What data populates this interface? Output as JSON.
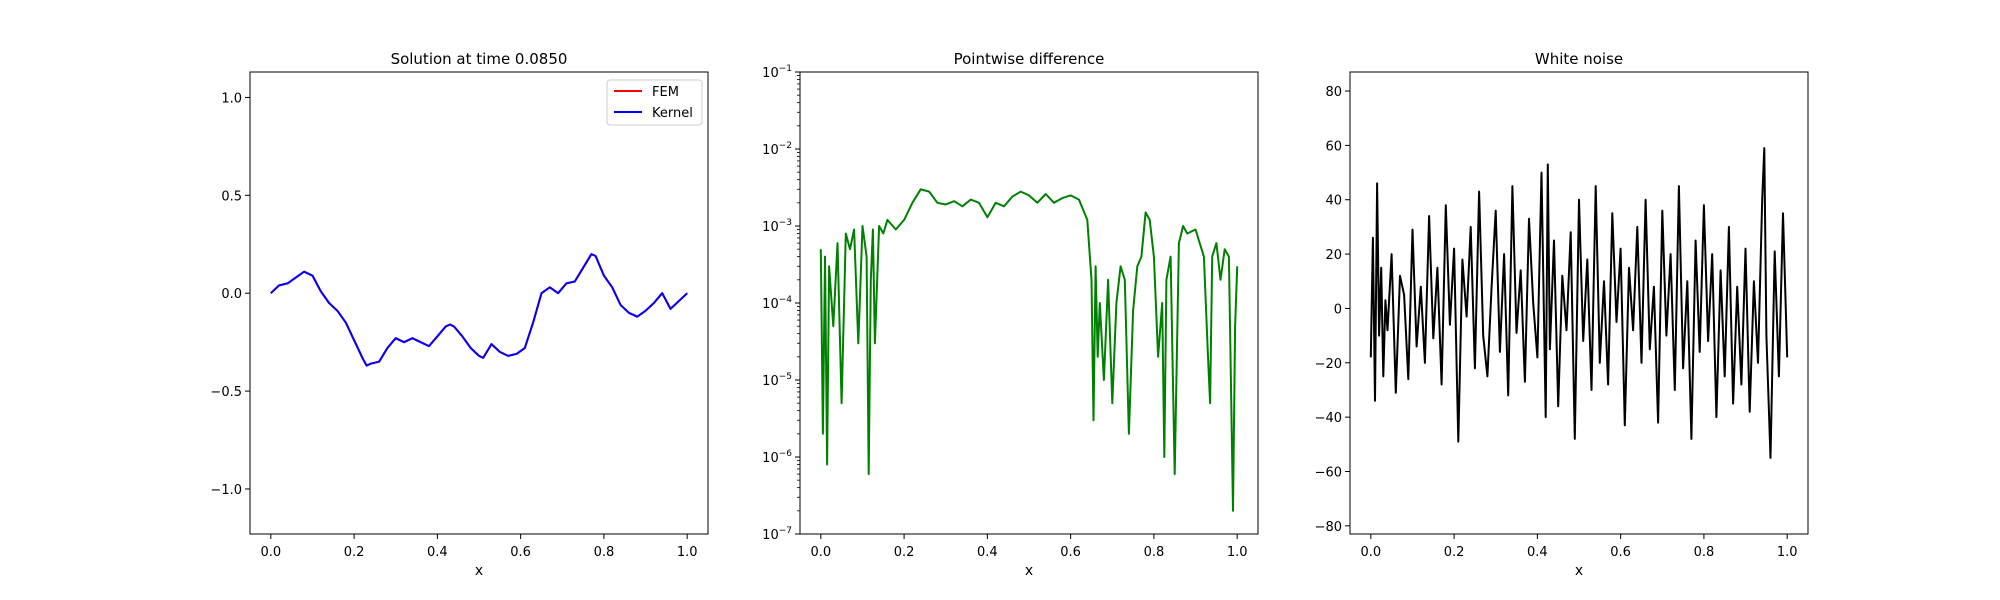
{
  "chart_data": [
    {
      "type": "line",
      "title": "Solution at time 0.0850",
      "xlabel": "x",
      "ylabel": "",
      "xlim": [
        -0.05,
        1.05
      ],
      "ylim": [
        -1.23,
        1.13
      ],
      "xticks": [
        0.0,
        0.2,
        0.4,
        0.6,
        0.8,
        1.0
      ],
      "xtick_labels": [
        "0.0",
        "0.2",
        "0.4",
        "0.6",
        "0.8",
        "1.0"
      ],
      "yticks": [
        -1.0,
        -0.5,
        0.0,
        0.5,
        1.0
      ],
      "ytick_labels": [
        "−1.0",
        "−0.5",
        "0.0",
        "0.5",
        "1.0"
      ],
      "grid": false,
      "legend_position": "top-right",
      "series": [
        {
          "name": "FEM",
          "color": "#ff0000",
          "x": [
            0.0,
            0.02,
            0.04,
            0.06,
            0.08,
            0.1,
            0.12,
            0.14,
            0.16,
            0.18,
            0.2,
            0.22,
            0.23,
            0.24,
            0.26,
            0.28,
            0.3,
            0.32,
            0.34,
            0.36,
            0.38,
            0.4,
            0.42,
            0.43,
            0.44,
            0.46,
            0.48,
            0.5,
            0.51,
            0.53,
            0.55,
            0.57,
            0.59,
            0.61,
            0.63,
            0.65,
            0.67,
            0.69,
            0.71,
            0.73,
            0.75,
            0.77,
            0.78,
            0.8,
            0.82,
            0.84,
            0.86,
            0.88,
            0.9,
            0.92,
            0.94,
            0.96,
            0.98,
            1.0
          ],
          "y": [
            0.0,
            0.04,
            0.05,
            0.08,
            0.11,
            0.09,
            0.01,
            -0.05,
            -0.09,
            -0.15,
            -0.24,
            -0.33,
            -0.37,
            -0.36,
            -0.35,
            -0.28,
            -0.23,
            -0.25,
            -0.23,
            -0.25,
            -0.27,
            -0.22,
            -0.17,
            -0.16,
            -0.17,
            -0.22,
            -0.28,
            -0.32,
            -0.33,
            -0.26,
            -0.3,
            -0.32,
            -0.31,
            -0.28,
            -0.15,
            0.0,
            0.03,
            0.0,
            0.05,
            0.06,
            0.13,
            0.2,
            0.19,
            0.09,
            0.03,
            -0.06,
            -0.1,
            -0.12,
            -0.09,
            -0.05,
            0.0,
            -0.08,
            -0.04,
            0.0
          ]
        },
        {
          "name": "Kernel",
          "color": "#0000ff",
          "x": [
            0.0,
            0.02,
            0.04,
            0.06,
            0.08,
            0.1,
            0.12,
            0.14,
            0.16,
            0.18,
            0.2,
            0.22,
            0.23,
            0.24,
            0.26,
            0.28,
            0.3,
            0.32,
            0.34,
            0.36,
            0.38,
            0.4,
            0.42,
            0.43,
            0.44,
            0.46,
            0.48,
            0.5,
            0.51,
            0.53,
            0.55,
            0.57,
            0.59,
            0.61,
            0.63,
            0.65,
            0.67,
            0.69,
            0.71,
            0.73,
            0.75,
            0.77,
            0.78,
            0.8,
            0.82,
            0.84,
            0.86,
            0.88,
            0.9,
            0.92,
            0.94,
            0.96,
            0.98,
            1.0
          ],
          "y": [
            0.0,
            0.04,
            0.05,
            0.08,
            0.11,
            0.09,
            0.01,
            -0.05,
            -0.09,
            -0.15,
            -0.24,
            -0.33,
            -0.37,
            -0.36,
            -0.35,
            -0.28,
            -0.23,
            -0.25,
            -0.23,
            -0.25,
            -0.27,
            -0.22,
            -0.17,
            -0.16,
            -0.17,
            -0.22,
            -0.28,
            -0.32,
            -0.33,
            -0.26,
            -0.3,
            -0.32,
            -0.31,
            -0.28,
            -0.15,
            0.0,
            0.03,
            0.0,
            0.05,
            0.06,
            0.13,
            0.2,
            0.19,
            0.09,
            0.03,
            -0.06,
            -0.1,
            -0.12,
            -0.09,
            -0.05,
            0.0,
            -0.08,
            -0.04,
            0.0
          ]
        }
      ]
    },
    {
      "type": "line",
      "title": "Pointwise difference",
      "xlabel": "x",
      "ylabel": "",
      "yscale": "log",
      "xlim": [
        -0.05,
        1.05
      ],
      "ylim": [
        1e-07,
        0.1
      ],
      "xticks": [
        0.0,
        0.2,
        0.4,
        0.6,
        0.8,
        1.0
      ],
      "xtick_labels": [
        "0.0",
        "0.2",
        "0.4",
        "0.6",
        "0.8",
        "1.0"
      ],
      "yticks": [
        1e-07,
        1e-06,
        1e-05,
        0.0001,
        0.001,
        0.01,
        0.1
      ],
      "ytick_mantissa": [
        "10",
        "10",
        "10",
        "10",
        "10",
        "10",
        "10"
      ],
      "ytick_exponents": [
        "−7",
        "−6",
        "−5",
        "−4",
        "−3",
        "−2",
        "−1"
      ],
      "grid": false,
      "series": [
        {
          "color": "#008000",
          "x": [
            0.0,
            0.005,
            0.01,
            0.015,
            0.02,
            0.03,
            0.04,
            0.05,
            0.06,
            0.07,
            0.08,
            0.09,
            0.1,
            0.11,
            0.115,
            0.12,
            0.125,
            0.13,
            0.14,
            0.15,
            0.16,
            0.18,
            0.2,
            0.22,
            0.24,
            0.26,
            0.28,
            0.3,
            0.32,
            0.34,
            0.36,
            0.38,
            0.4,
            0.42,
            0.44,
            0.46,
            0.48,
            0.5,
            0.52,
            0.54,
            0.56,
            0.58,
            0.6,
            0.62,
            0.64,
            0.65,
            0.655,
            0.66,
            0.665,
            0.67,
            0.68,
            0.69,
            0.7,
            0.71,
            0.72,
            0.73,
            0.74,
            0.75,
            0.76,
            0.77,
            0.78,
            0.79,
            0.8,
            0.81,
            0.82,
            0.825,
            0.83,
            0.84,
            0.85,
            0.86,
            0.87,
            0.88,
            0.9,
            0.91,
            0.92,
            0.93,
            0.935,
            0.94,
            0.95,
            0.96,
            0.97,
            0.98,
            0.985,
            0.99,
            0.995,
            1.0
          ],
          "y": [
            0.0005,
            2e-06,
            0.0004,
            8e-07,
            0.0003,
            5e-05,
            0.0006,
            5e-06,
            0.0008,
            0.0005,
            0.0009,
            3e-05,
            0.001,
            0.0004,
            6e-07,
            0.0002,
            0.0009,
            3e-05,
            0.001,
            0.0008,
            0.0012,
            0.0009,
            0.0012,
            0.002,
            0.003,
            0.0028,
            0.002,
            0.0019,
            0.0021,
            0.0018,
            0.0022,
            0.002,
            0.0013,
            0.002,
            0.0018,
            0.0024,
            0.0028,
            0.0025,
            0.002,
            0.0026,
            0.002,
            0.0023,
            0.0025,
            0.0022,
            0.0012,
            0.0002,
            3e-06,
            0.0003,
            2e-05,
            0.0001,
            1e-05,
            0.0002,
            5e-06,
            0.0001,
            0.0003,
            0.0002,
            2e-06,
            8e-05,
            0.0003,
            0.0004,
            0.0015,
            0.0012,
            0.0004,
            2e-05,
            0.0001,
            1e-06,
            0.0002,
            0.0004,
            6e-07,
            0.0006,
            0.001,
            0.0008,
            0.0009,
            0.0006,
            0.0004,
            2e-05,
            5e-06,
            0.0004,
            0.0006,
            0.0002,
            0.0005,
            0.0004,
            1e-05,
            2e-07,
            5e-05,
            0.0003
          ]
        }
      ]
    },
    {
      "type": "line",
      "title": "White noise",
      "xlabel": "x",
      "ylabel": "",
      "xlim": [
        -0.05,
        1.05
      ],
      "ylim": [
        -83.0,
        87.0
      ],
      "xticks": [
        0.0,
        0.2,
        0.4,
        0.6,
        0.8,
        1.0
      ],
      "xtick_labels": [
        "0.0",
        "0.2",
        "0.4",
        "0.6",
        "0.8",
        "1.0"
      ],
      "yticks": [
        -80,
        -60,
        -40,
        -20,
        0,
        20,
        40,
        60,
        80
      ],
      "ytick_labels": [
        "−80",
        "−60",
        "−40",
        "−20",
        "0",
        "20",
        "40",
        "60",
        "80"
      ],
      "grid": false,
      "series": [
        {
          "color": "#000000",
          "x": [
            0.0,
            0.005,
            0.01,
            0.015,
            0.02,
            0.025,
            0.03,
            0.035,
            0.04,
            0.05,
            0.06,
            0.07,
            0.08,
            0.09,
            0.1,
            0.11,
            0.12,
            0.13,
            0.14,
            0.15,
            0.16,
            0.17,
            0.18,
            0.19,
            0.2,
            0.21,
            0.22,
            0.23,
            0.24,
            0.25,
            0.26,
            0.27,
            0.28,
            0.29,
            0.3,
            0.31,
            0.32,
            0.33,
            0.34,
            0.35,
            0.36,
            0.37,
            0.38,
            0.39,
            0.4,
            0.41,
            0.42,
            0.425,
            0.43,
            0.44,
            0.45,
            0.46,
            0.47,
            0.48,
            0.49,
            0.5,
            0.51,
            0.52,
            0.53,
            0.54,
            0.55,
            0.56,
            0.57,
            0.58,
            0.59,
            0.6,
            0.61,
            0.62,
            0.63,
            0.64,
            0.65,
            0.66,
            0.67,
            0.68,
            0.69,
            0.7,
            0.71,
            0.72,
            0.73,
            0.74,
            0.75,
            0.76,
            0.77,
            0.78,
            0.79,
            0.8,
            0.81,
            0.82,
            0.83,
            0.84,
            0.85,
            0.86,
            0.87,
            0.88,
            0.89,
            0.9,
            0.91,
            0.92,
            0.93,
            0.94,
            0.945,
            0.95,
            0.96,
            0.97,
            0.98,
            0.99,
            1.0
          ],
          "y": [
            -18,
            26,
            -34,
            46,
            -10,
            15,
            -25,
            3,
            -8,
            20,
            -31,
            12,
            5,
            -26,
            29,
            -14,
            8,
            -20,
            34,
            -11,
            15,
            -28,
            38,
            -6,
            22,
            -49,
            18,
            -3,
            30,
            -22,
            43,
            -10,
            -25,
            8,
            36,
            -16,
            20,
            -32,
            45,
            -9,
            14,
            -27,
            33,
            2,
            -18,
            50,
            -40,
            53,
            -15,
            25,
            -36,
            12,
            -8,
            28,
            -48,
            40,
            -12,
            18,
            -30,
            45,
            -20,
            10,
            -28,
            35,
            -5,
            22,
            -43,
            15,
            -8,
            30,
            -20,
            40,
            -15,
            8,
            -42,
            36,
            -10,
            20,
            -30,
            45,
            -22,
            10,
            -48,
            25,
            -16,
            38,
            -12,
            20,
            -40,
            14,
            -25,
            30,
            -35,
            8,
            -28,
            22,
            -38,
            10,
            -20,
            40,
            59,
            -10,
            -55,
            21,
            -25,
            35,
            -18
          ]
        }
      ]
    }
  ]
}
